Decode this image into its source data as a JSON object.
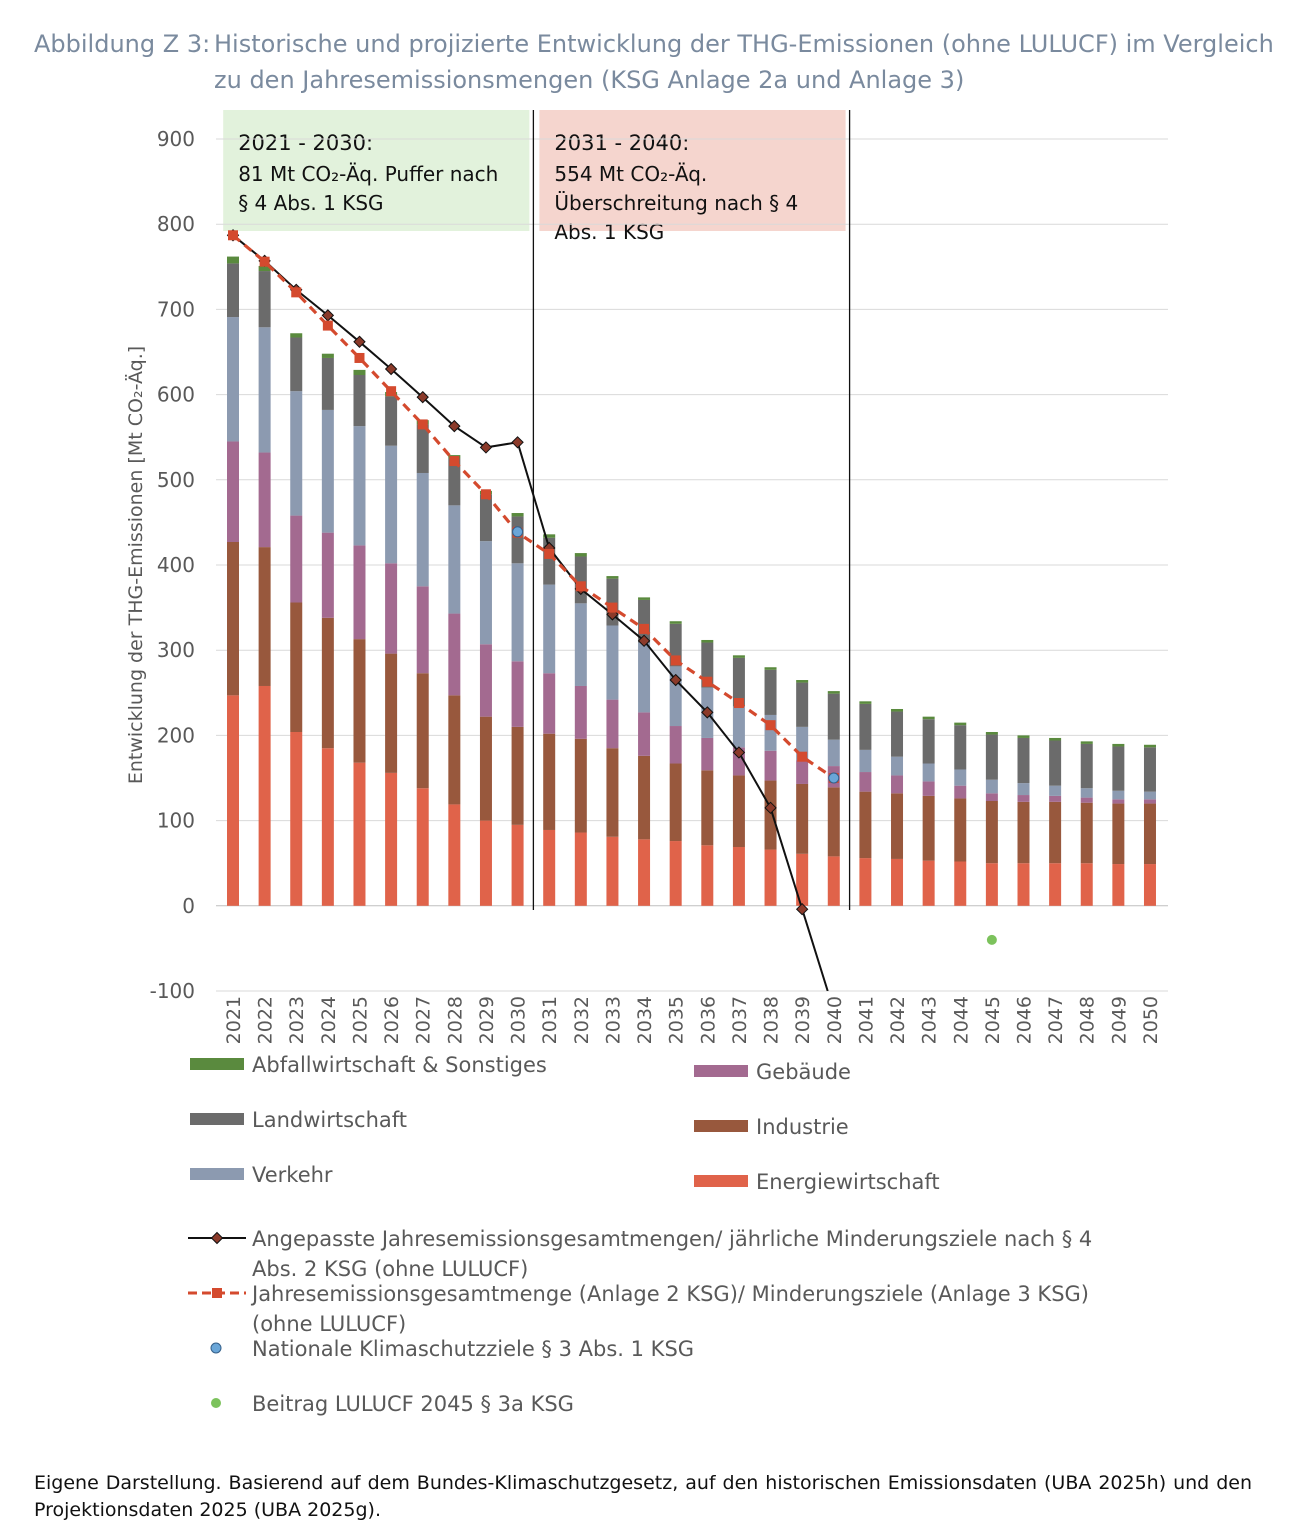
{
  "caption": {
    "label": "Abbildung Z 3:",
    "title": "Historische und projizierte Entwicklung der THG-Emissionen (ohne LULUCF) im Vergleich zu den Jahresemissionsmengen (KSG Anlage 2a und Anlage 3)"
  },
  "source_note": "Eigene Darstellung. Basierend auf dem Bundes-Klimaschutzgesetz, auf den historischen Emissionsdaten (UBA 2025h) und den Projektionsdaten 2025 (UBA 2025g).",
  "chart_data": {
    "type": "bar",
    "stacked": true,
    "ylabel": "Entwicklung der THG-Emissionen [Mt CO₂-Äq.]",
    "ylim": [
      -100,
      900
    ],
    "yticks": [
      -100,
      0,
      100,
      200,
      300,
      400,
      500,
      600,
      700,
      800,
      900
    ],
    "grid": true,
    "categories": [
      "2021",
      "2022",
      "2023",
      "2024",
      "2025",
      "2026",
      "2027",
      "2028",
      "2029",
      "2030",
      "2031",
      "2032",
      "2033",
      "2034",
      "2035",
      "2036",
      "2037",
      "2038",
      "2039",
      "2040",
      "2041",
      "2042",
      "2043",
      "2044",
      "2045",
      "2046",
      "2047",
      "2048",
      "2049",
      "2050"
    ],
    "series": [
      {
        "name": "Energiewirtschaft",
        "color": "#e0634a",
        "values": [
          247,
          258,
          204,
          185,
          168,
          156,
          138,
          119,
          100,
          95,
          89,
          86,
          81,
          78,
          76,
          71,
          69,
          66,
          61,
          58,
          56,
          55,
          53,
          52,
          50,
          50,
          50,
          50,
          49,
          49
        ]
      },
      {
        "name": "Industrie",
        "color": "#98583d",
        "values": [
          180,
          163,
          152,
          153,
          145,
          140,
          135,
          128,
          122,
          115,
          113,
          110,
          104,
          98,
          91,
          88,
          84,
          81,
          82,
          81,
          78,
          77,
          76,
          74,
          73,
          72,
          72,
          71,
          71,
          71
        ]
      },
      {
        "name": "Gebäude",
        "color": "#a36a90",
        "values": [
          118,
          111,
          102,
          100,
          110,
          106,
          102,
          96,
          85,
          77,
          71,
          62,
          57,
          51,
          44,
          38,
          33,
          35,
          28,
          25,
          23,
          21,
          17,
          15,
          9,
          8,
          7,
          6,
          5,
          5
        ]
      },
      {
        "name": "Verkehr",
        "color": "#8c9ab0",
        "values": [
          146,
          147,
          146,
          144,
          140,
          138,
          133,
          127,
          121,
          115,
          104,
          97,
          87,
          82,
          70,
          59,
          48,
          42,
          39,
          31,
          26,
          22,
          21,
          19,
          16,
          14,
          12,
          11,
          10,
          9
        ]
      },
      {
        "name": "Landwirtschaft",
        "color": "#6b6b6b",
        "values": [
          63,
          66,
          63,
          61,
          60,
          58,
          57,
          55,
          55,
          55,
          55,
          55,
          55,
          50,
          50,
          53,
          57,
          53,
          52,
          54,
          54,
          53,
          52,
          52,
          53,
          53,
          53,
          52,
          52,
          52
        ]
      },
      {
        "name": "Abfallwirtschaft & Sonstiges",
        "color": "#5a8a3e",
        "values": [
          8,
          6,
          5,
          5,
          6,
          5,
          5,
          4,
          4,
          4,
          4,
          4,
          3,
          3,
          3,
          3,
          3,
          3,
          3,
          3,
          3,
          3,
          3,
          3,
          3,
          3,
          3,
          3,
          3,
          3
        ]
      }
    ],
    "lines": [
      {
        "name": "Angepasste Jahresemissionsgesamtmengen/ jährliche Minderungsziele nach § 4 Abs. 2 KSG (ohne LULUCF)",
        "color": "#111111",
        "marker": "diamond",
        "marker_color": "#8b3a2a",
        "x": [
          "2021",
          "2022",
          "2023",
          "2024",
          "2025",
          "2026",
          "2027",
          "2028",
          "2029",
          "2030",
          "2031",
          "2032",
          "2033",
          "2034",
          "2035",
          "2036",
          "2037",
          "2038",
          "2039"
        ],
        "values": [
          787,
          757,
          723,
          693,
          662,
          630,
          597,
          563,
          538,
          544,
          420,
          372,
          342,
          311,
          265,
          227,
          180,
          115,
          -4
        ]
      },
      {
        "name": "Jahresemissionsgesamtmenge (Anlage 2 KSG)/ Minderungsziele (Anlage 3 KSG) (ohne LULUCF)",
        "color": "#d44a2e",
        "marker": "square",
        "dashed": true,
        "x": [
          "2021",
          "2022",
          "2023",
          "2024",
          "2025",
          "2026",
          "2027",
          "2028",
          "2029",
          "2030",
          "2031",
          "2032",
          "2033",
          "2034",
          "2035",
          "2036",
          "2037",
          "2038",
          "2039",
          "2040"
        ],
        "values": [
          787,
          756,
          720,
          681,
          643,
          604,
          565,
          522,
          483,
          438,
          413,
          375,
          350,
          325,
          288,
          263,
          238,
          212,
          175,
          150
        ]
      }
    ],
    "points": [
      {
        "name": "Nationale Klimaschutzziele  § 3 Abs. 1 KSG",
        "color": "#6aa6d8",
        "x": [
          "2030",
          "2040"
        ],
        "values": [
          439,
          150
        ]
      },
      {
        "name": "Beitrag LULUCF 2045 § 3a KSG",
        "color": "#7cc25c",
        "x": [
          "2045"
        ],
        "values": [
          -40
        ]
      }
    ],
    "periods": [
      {
        "range": [
          "2021",
          "2030"
        ],
        "color": "#e2f2dc",
        "title": "2021 - 2030:",
        "lines": [
          "81 Mt CO₂-Äq. Puffer nach",
          "§ 4 Abs. 1 KSG"
        ]
      },
      {
        "range": [
          "2031",
          "2040"
        ],
        "color": "#f5d5ce",
        "title": "2031 - 2040:",
        "lines": [
          "554 Mt CO₂-Äq.",
          "Überschreitung nach § 4",
          "Abs. 1 KSG"
        ]
      }
    ],
    "dividers_after": [
      "2030",
      "2040"
    ]
  }
}
